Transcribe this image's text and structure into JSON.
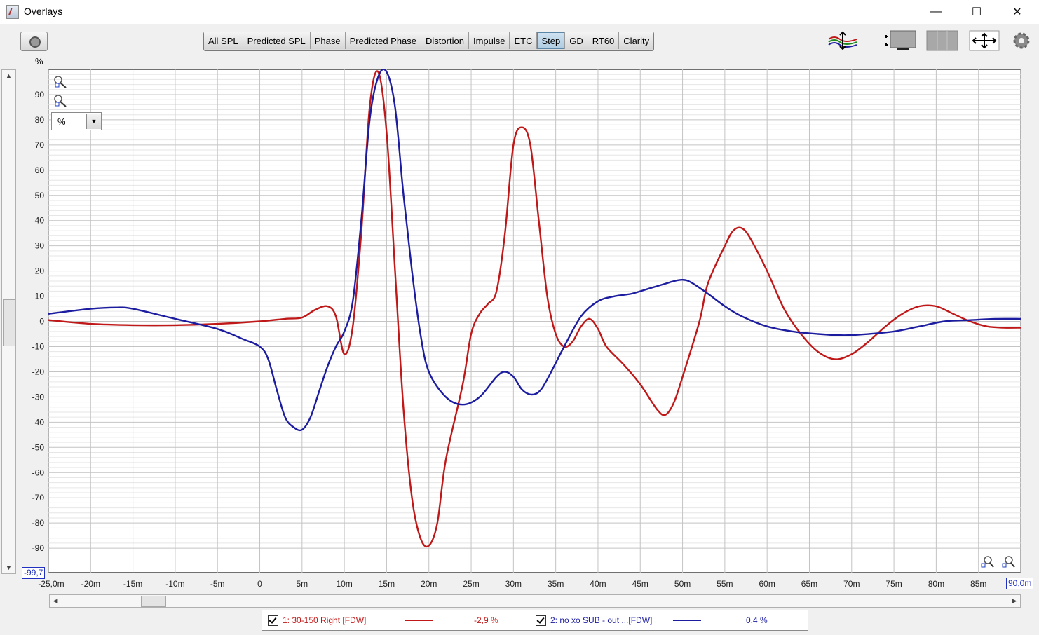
{
  "window": {
    "title": "Overlays",
    "minimize": "—",
    "maximize": "☐",
    "close": "✕"
  },
  "toolbar": {
    "tabs": [
      {
        "label": "All SPL",
        "active": false
      },
      {
        "label": "Predicted SPL",
        "active": false
      },
      {
        "label": "Phase",
        "active": false
      },
      {
        "label": "Predicted Phase",
        "active": false
      },
      {
        "label": "Distortion",
        "active": false
      },
      {
        "label": "Impulse",
        "active": false
      },
      {
        "label": "ETC",
        "active": false
      },
      {
        "label": "Step",
        "active": true
      },
      {
        "label": "GD",
        "active": false
      },
      {
        "label": "RT60",
        "active": false
      },
      {
        "label": "Clarity",
        "active": false
      }
    ],
    "icons": [
      "camera-icon",
      "trace-arrange-icon",
      "legend-layout-icon",
      "tile-icon",
      "move-arrows-icon",
      "gear-icon"
    ]
  },
  "plot": {
    "unit_label": "%",
    "unit_select": "%",
    "y_min_label": "-99,7",
    "x_min_label": "-25,0m",
    "x_max_label": "90,0m"
  },
  "chart_data": {
    "type": "line",
    "xlim": [
      -25,
      90
    ],
    "ylim": [
      -99.7,
      100
    ],
    "grid": true,
    "x_ticks": [
      -25,
      -20,
      -15,
      -10,
      -5,
      0,
      5,
      10,
      15,
      20,
      25,
      30,
      35,
      40,
      45,
      50,
      55,
      60,
      65,
      70,
      75,
      80,
      85,
      90
    ],
    "x_tick_labels": [
      "-25,0m",
      "-20m",
      "-15m",
      "-10m",
      "-5m",
      "0",
      "5m",
      "10m",
      "15m",
      "20m",
      "25m",
      "30m",
      "35m",
      "40m",
      "45m",
      "50m",
      "55m",
      "60m",
      "65m",
      "70m",
      "75m",
      "80m",
      "85m",
      "90,0m"
    ],
    "y_ticks": [
      90,
      80,
      70,
      60,
      50,
      40,
      30,
      20,
      10,
      0,
      -10,
      -20,
      -30,
      -40,
      -50,
      -60,
      -70,
      -80,
      -90
    ],
    "y_tick_labels": [
      "90",
      "80",
      "70",
      "60",
      "50",
      "40",
      "30",
      "20",
      "10",
      "0",
      "-10",
      "-20",
      "-30",
      "-40",
      "-50",
      "-60",
      "-70",
      "-80",
      "-90"
    ],
    "series": [
      {
        "name": "1: 30-150 Right [FDW]",
        "color": "#c01818",
        "readout": "-2,9 %",
        "points": [
          [
            -25,
            0.5
          ],
          [
            -20,
            -1
          ],
          [
            -15,
            -1.5
          ],
          [
            -10,
            -1.5
          ],
          [
            -5,
            -1
          ],
          [
            0,
            0
          ],
          [
            3,
            1
          ],
          [
            5,
            1.5
          ],
          [
            6.5,
            4.5
          ],
          [
            8,
            6
          ],
          [
            9,
            2
          ],
          [
            10,
            -13
          ],
          [
            11,
            -2
          ],
          [
            12,
            35
          ],
          [
            13,
            85
          ],
          [
            14,
            99
          ],
          [
            15,
            75
          ],
          [
            16,
            20
          ],
          [
            17,
            -35
          ],
          [
            18,
            -70
          ],
          [
            19,
            -86
          ],
          [
            20,
            -89
          ],
          [
            21,
            -80
          ],
          [
            22,
            -55
          ],
          [
            24,
            -25
          ],
          [
            25,
            -5
          ],
          [
            26,
            3
          ],
          [
            27,
            7
          ],
          [
            28,
            12
          ],
          [
            29,
            35
          ],
          [
            30,
            70
          ],
          [
            31,
            77
          ],
          [
            32,
            70
          ],
          [
            33,
            40
          ],
          [
            34,
            10
          ],
          [
            35,
            -5
          ],
          [
            36,
            -10
          ],
          [
            37,
            -8
          ],
          [
            38,
            -2
          ],
          [
            39,
            1
          ],
          [
            40,
            -3
          ],
          [
            41,
            -10
          ],
          [
            43,
            -17
          ],
          [
            45,
            -25
          ],
          [
            47,
            -35
          ],
          [
            48,
            -37
          ],
          [
            49,
            -32
          ],
          [
            50,
            -22
          ],
          [
            52,
            0
          ],
          [
            53,
            15
          ],
          [
            55,
            30
          ],
          [
            56,
            36
          ],
          [
            57,
            37
          ],
          [
            58,
            33
          ],
          [
            60,
            20
          ],
          [
            62,
            5
          ],
          [
            64,
            -5
          ],
          [
            66,
            -12
          ],
          [
            68,
            -15
          ],
          [
            70,
            -13
          ],
          [
            72,
            -8
          ],
          [
            74,
            -2
          ],
          [
            76,
            3
          ],
          [
            78,
            6
          ],
          [
            80,
            6
          ],
          [
            82,
            3
          ],
          [
            84,
            0
          ],
          [
            86,
            -2
          ],
          [
            88,
            -2.5
          ],
          [
            90,
            -2.5
          ]
        ]
      },
      {
        "name": "2: no xo SUB - out ...[FDW]",
        "color": "#1c1ca0",
        "readout": "0,4 %",
        "points": [
          [
            -25,
            3
          ],
          [
            -20,
            5
          ],
          [
            -17,
            5.5
          ],
          [
            -15,
            5
          ],
          [
            -10,
            1
          ],
          [
            -5,
            -3
          ],
          [
            -2,
            -7
          ],
          [
            0,
            -10
          ],
          [
            1,
            -15
          ],
          [
            2,
            -27
          ],
          [
            3,
            -38
          ],
          [
            4,
            -42
          ],
          [
            5,
            -43
          ],
          [
            6,
            -38
          ],
          [
            7,
            -28
          ],
          [
            8,
            -18
          ],
          [
            9,
            -10
          ],
          [
            10,
            -4
          ],
          [
            11,
            8
          ],
          [
            12,
            40
          ],
          [
            13,
            80
          ],
          [
            14,
            97
          ],
          [
            15,
            99
          ],
          [
            16,
            85
          ],
          [
            17,
            50
          ],
          [
            18,
            20
          ],
          [
            19,
            -5
          ],
          [
            20,
            -20
          ],
          [
            22,
            -30
          ],
          [
            24,
            -33
          ],
          [
            26,
            -30
          ],
          [
            28,
            -22
          ],
          [
            29,
            -20
          ],
          [
            30,
            -22
          ],
          [
            31,
            -27
          ],
          [
            32,
            -29
          ],
          [
            33,
            -28
          ],
          [
            34,
            -23
          ],
          [
            36,
            -10
          ],
          [
            38,
            2
          ],
          [
            40,
            8
          ],
          [
            42,
            10
          ],
          [
            44,
            11
          ],
          [
            46,
            13
          ],
          [
            48,
            15
          ],
          [
            49,
            16
          ],
          [
            50,
            16.5
          ],
          [
            51,
            15.5
          ],
          [
            53,
            11
          ],
          [
            55,
            6
          ],
          [
            57,
            2
          ],
          [
            60,
            -2
          ],
          [
            63,
            -4
          ],
          [
            66,
            -5
          ],
          [
            69,
            -5.5
          ],
          [
            72,
            -5
          ],
          [
            75,
            -4
          ],
          [
            78,
            -2
          ],
          [
            81,
            0
          ],
          [
            84,
            0.5
          ],
          [
            87,
            1
          ],
          [
            90,
            1
          ]
        ]
      }
    ]
  }
}
